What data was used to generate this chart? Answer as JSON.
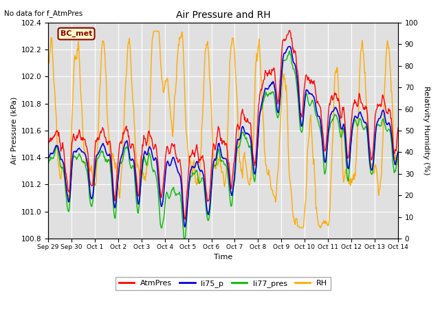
{
  "title": "Air Pressure and RH",
  "top_left_text": "No data for f_AtmPres",
  "bc_met_label": "BC_met",
  "xlabel": "Time",
  "ylabel_left": "Air Pressure (kPa)",
  "ylabel_right": "Relativity Humidity (%)",
  "ylim_left": [
    100.8,
    102.4
  ],
  "ylim_right": [
    0,
    100
  ],
  "yticks_left": [
    100.8,
    101.0,
    101.2,
    101.4,
    101.6,
    101.8,
    102.0,
    102.2,
    102.4
  ],
  "yticks_right": [
    0,
    10,
    20,
    30,
    40,
    50,
    60,
    70,
    80,
    90,
    100
  ],
  "xtick_labels": [
    "Sep 29",
    "Sep 30",
    "Oct 1",
    "Oct 2",
    "Oct 3",
    "Oct 4",
    "Oct 5",
    "Oct 6",
    "Oct 7",
    "Oct 8",
    "Oct 9",
    "Oct 10",
    "Oct 11",
    "Oct 12",
    "Oct 13",
    "Oct 14"
  ],
  "colors": {
    "AtmPres": "#ff0000",
    "li75_p": "#0000dd",
    "li77_pres": "#00bb00",
    "RH": "#ffaa00"
  },
  "legend_labels": [
    "AtmPres",
    "li75_p",
    "li77_pres",
    "RH"
  ],
  "plot_bg": "#e0e0e0",
  "fig_bg": "#ffffff",
  "grid_color": "#ffffff",
  "linewidth_pres": 1.0,
  "linewidth_rh": 1.0
}
